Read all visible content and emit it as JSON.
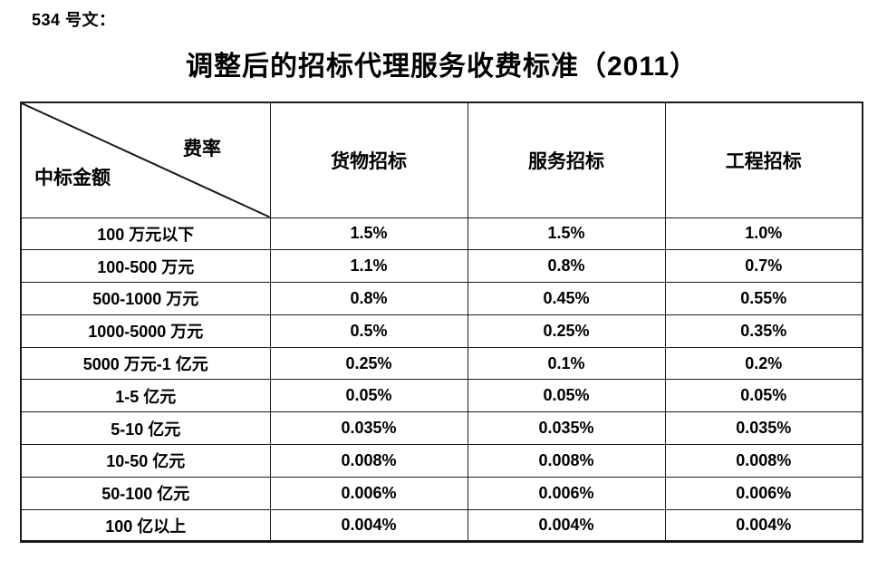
{
  "doc": {
    "doc_label": "534 号文：",
    "title": "调整后的招标代理服务收费标准（2011）"
  },
  "table": {
    "corner": {
      "top_right_label": "费率",
      "bottom_left_label": "中标金额"
    },
    "columns": [
      "货物招标",
      "服务招标",
      "工程招标"
    ],
    "rows": [
      {
        "amount": "100 万元以下",
        "values": [
          "1.5%",
          "1.5%",
          "1.0%"
        ]
      },
      {
        "amount": "100-500 万元",
        "values": [
          "1.1%",
          "0.8%",
          "0.7%"
        ]
      },
      {
        "amount": "500-1000 万元",
        "values": [
          "0.8%",
          "0.45%",
          "0.55%"
        ]
      },
      {
        "amount": "1000-5000 万元",
        "values": [
          "0.5%",
          "0.25%",
          "0.35%"
        ]
      },
      {
        "amount": "5000 万元-1 亿元",
        "values": [
          "0.25%",
          "0.1%",
          "0.2%"
        ]
      },
      {
        "amount": "1-5 亿元",
        "values": [
          "0.05%",
          "0.05%",
          "0.05%"
        ]
      },
      {
        "amount": "5-10 亿元",
        "values": [
          "0.035%",
          "0.035%",
          "0.035%"
        ]
      },
      {
        "amount": "10-50 亿元",
        "values": [
          "0.008%",
          "0.008%",
          "0.008%"
        ]
      },
      {
        "amount": "50-100 亿元",
        "values": [
          "0.006%",
          "0.006%",
          "0.006%"
        ]
      },
      {
        "amount": "100 亿以上",
        "values": [
          "0.004%",
          "0.004%",
          "0.004%"
        ]
      }
    ]
  },
  "colors": {
    "text": "#000000",
    "border": "#1a1a1a",
    "background": "#ffffff"
  }
}
